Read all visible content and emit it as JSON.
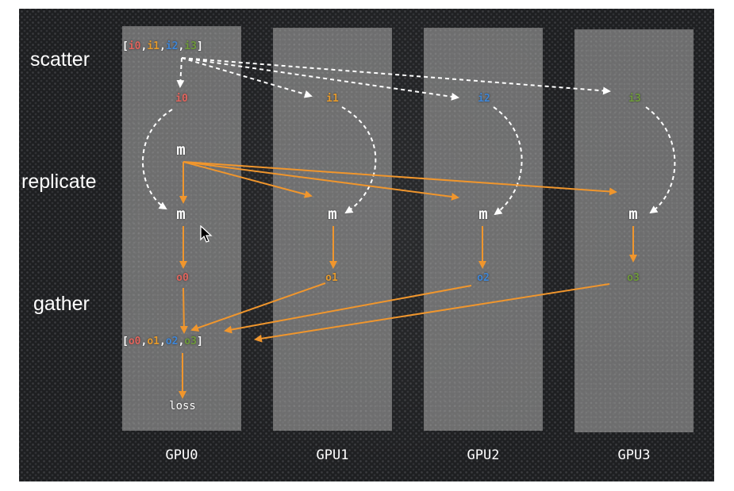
{
  "row_labels": {
    "scatter": "scatter",
    "replicate": "replicate",
    "gather": "gather"
  },
  "input_list": {
    "open": "[",
    "items": [
      "i0",
      "i1",
      "i2",
      "i3"
    ],
    "sep": ",",
    "close": "]"
  },
  "scattered_inputs": [
    "i0",
    "i1",
    "i2",
    "i3"
  ],
  "model_source": "m",
  "model_replicas": [
    "m",
    "m",
    "m",
    "m"
  ],
  "outputs": [
    "o0",
    "o1",
    "o2",
    "o3"
  ],
  "output_list": {
    "open": "[",
    "items": [
      "o0",
      "o1",
      "o2",
      "o3"
    ],
    "sep": ",",
    "close": "]"
  },
  "loss": "loss",
  "gpus": [
    "GPU0",
    "GPU1",
    "GPU2",
    "GPU3"
  ],
  "colors": {
    "gpu0": "#e0645d",
    "gpu1": "#e59a2c",
    "gpu2": "#3f86d6",
    "gpu3": "#6e9a3a",
    "arrow_orange": "#f0962d",
    "arrow_white": "#ffffff",
    "column": "#848484",
    "background": "#1e1f21"
  }
}
